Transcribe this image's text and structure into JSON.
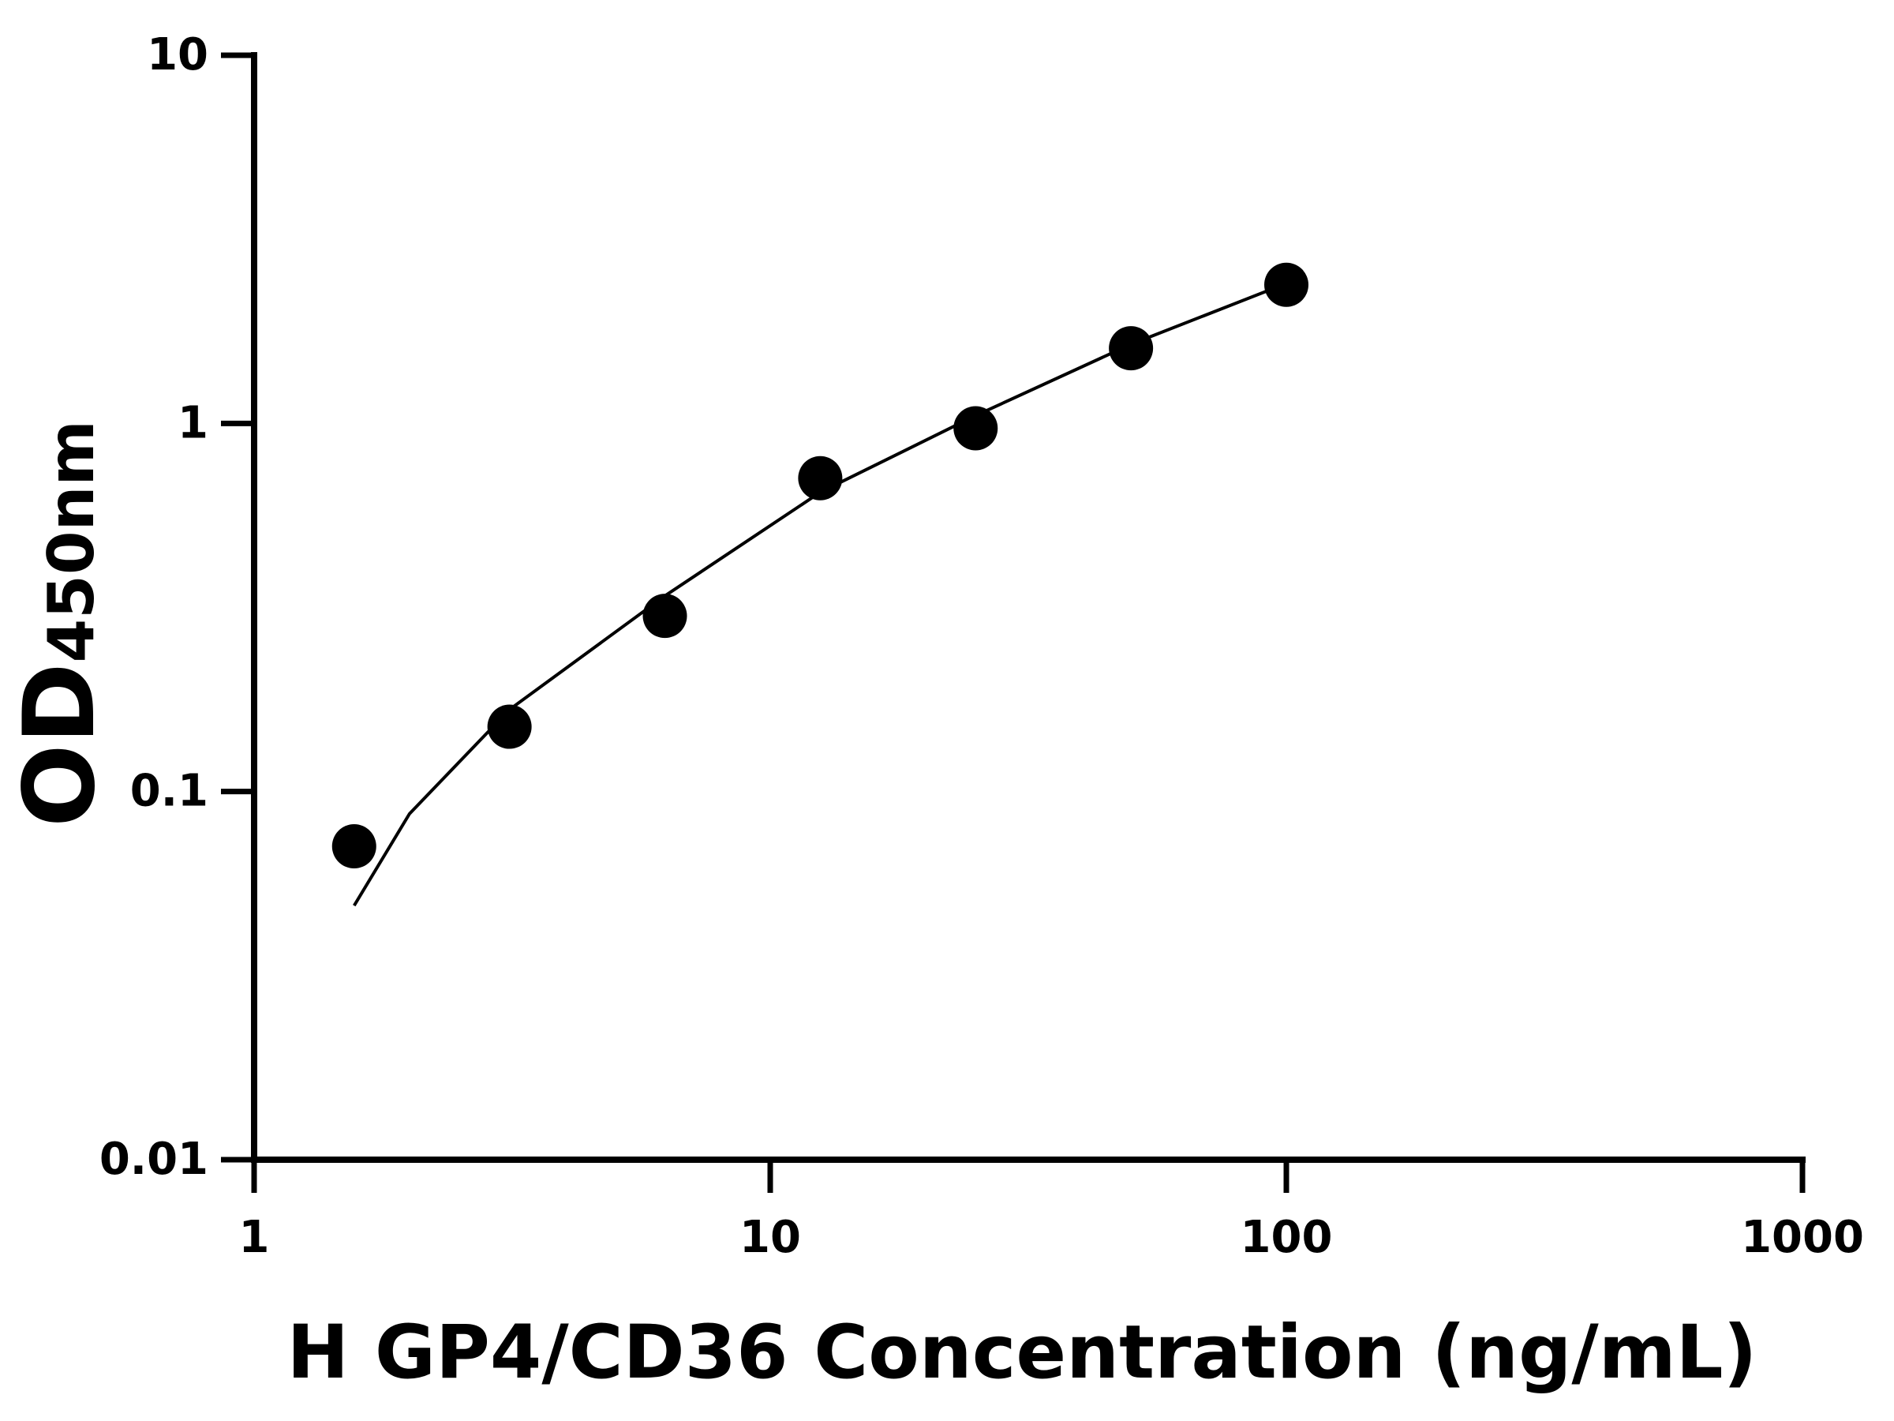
{
  "chart_data": {
    "type": "scatter",
    "xlabel": "H GP4/CD36 Concentration (ng/mL)",
    "ylabel": "OD",
    "ylabel_sub": "450nm",
    "xscale": "log",
    "yscale": "log",
    "xlim": [
      1,
      1000
    ],
    "xticks": [
      1,
      10,
      100,
      1000
    ],
    "ylim": [
      0.01,
      10
    ],
    "yticks": [
      0.01,
      0.1,
      1,
      10
    ],
    "series": [
      {
        "type": "scatter",
        "color": "#000000",
        "x": [
          1.5625,
          3.125,
          6.25,
          12.5,
          25,
          50,
          100
        ],
        "values": [
          0.071,
          0.15,
          0.3,
          0.71,
          0.97,
          1.6,
          2.38
        ]
      },
      {
        "type": "line",
        "color": "#000000",
        "x": [
          1.5625,
          2,
          3.125,
          6.25,
          12.5,
          25,
          50,
          100
        ],
        "values": [
          0.049,
          0.087,
          0.167,
          0.34,
          0.65,
          1.05,
          1.64,
          2.4
        ]
      }
    ]
  }
}
